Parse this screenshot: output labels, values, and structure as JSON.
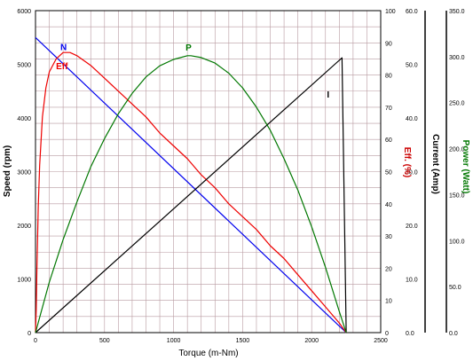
{
  "chart_data": {
    "type": "line",
    "xlabel": "Torque (m-Nm)",
    "x_ticks": [
      "0",
      "500",
      "1000",
      "1500",
      "2000",
      "2500"
    ],
    "xlim": [
      0,
      2500
    ],
    "axes": {
      "speed": {
        "label": "Speed (rpm)",
        "range": [
          0,
          6000
        ],
        "ticks": [
          "0",
          "1000",
          "2000",
          "3000",
          "4000",
          "5000",
          "6000"
        ],
        "color": "#000000"
      },
      "efficiency": {
        "label": "Eff. (%)",
        "range": [
          0,
          100
        ],
        "ticks": [
          "0",
          "10",
          "20",
          "30",
          "40",
          "50",
          "60",
          "70",
          "80",
          "90",
          "100"
        ],
        "color": "#cc0000"
      },
      "current": {
        "label": "Current (Amp)",
        "range": [
          0,
          60
        ],
        "ticks": [
          "0.0",
          "10.0",
          "20.0",
          "30.0",
          "40.0",
          "50.0",
          "60.0"
        ],
        "color": "#000000"
      },
      "power": {
        "label": "Power (Watt)",
        "range": [
          0,
          350
        ],
        "ticks": [
          "0.0",
          "50.0",
          "100.0",
          "150.0",
          "200.0",
          "250.0",
          "300.0",
          "350.0"
        ],
        "color": "#007700"
      }
    },
    "series": [
      {
        "name": "N",
        "axis": "speed",
        "color": "#0000ee",
        "x": [
          0,
          2250
        ],
        "y": [
          5500,
          0
        ]
      },
      {
        "name": "Eff",
        "axis": "efficiency",
        "color": "#ee0000",
        "x": [
          0,
          5,
          10,
          20,
          30,
          50,
          75,
          100,
          150,
          200,
          250,
          300,
          400,
          500,
          600,
          700,
          800,
          900,
          1000,
          1100,
          1200,
          1300,
          1400,
          1500,
          1600,
          1700,
          1800,
          1900,
          2000,
          2100,
          2200,
          2250
        ],
        "y": [
          0,
          7,
          20,
          39,
          52,
          67,
          76,
          81,
          85,
          87,
          87,
          86,
          83,
          79,
          75,
          71,
          67,
          62,
          58,
          54,
          49,
          45,
          40,
          36,
          32,
          27,
          23,
          18,
          13,
          8,
          3,
          0
        ]
      },
      {
        "name": "I",
        "axis": "current",
        "color": "#000000",
        "x": [
          0,
          2220,
          2250
        ],
        "y": [
          0,
          51.2,
          0
        ]
      },
      {
        "name": "P",
        "axis": "power",
        "color": "#007700",
        "x": [
          0,
          100,
          200,
          300,
          400,
          500,
          600,
          700,
          800,
          900,
          1000,
          1100,
          1125,
          1200,
          1300,
          1400,
          1500,
          1600,
          1700,
          1800,
          1900,
          2000,
          2100,
          2200,
          2250
        ],
        "y": [
          0,
          55,
          101,
          142,
          180,
          211,
          238,
          260,
          278,
          290,
          297,
          301,
          301,
          299,
          293,
          282,
          266,
          245,
          220,
          189,
          155,
          115,
          71,
          23,
          0
        ]
      }
    ],
    "labels": [
      {
        "text": "N",
        "color": "#0000ee"
      },
      {
        "text": "Eff",
        "color": "#ee0000"
      },
      {
        "text": "P",
        "color": "#007700"
      },
      {
        "text": "I",
        "color": "#000000"
      }
    ],
    "grid": true
  }
}
